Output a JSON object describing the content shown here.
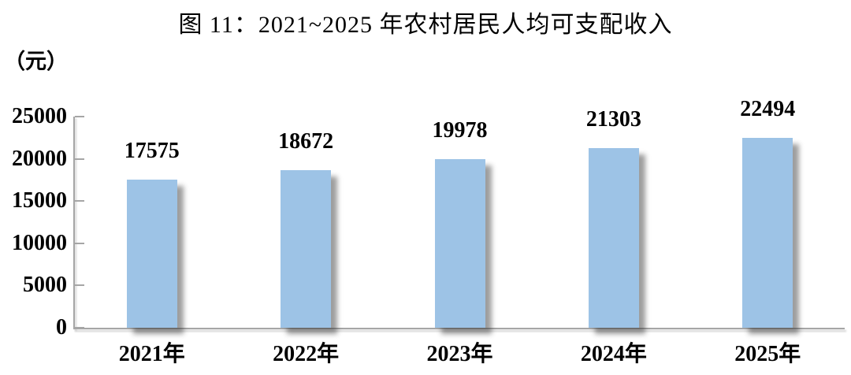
{
  "figure": {
    "title": "图 11：2021~2025 年农村居民人均可支配收入",
    "unit_label": "（元）"
  },
  "chart_data": {
    "type": "bar",
    "title": "图 11：2021~2025 年农村居民人均可支配收入",
    "ylabel": "（元）",
    "categories": [
      "2021年",
      "2022年",
      "2023年",
      "2024年",
      "2025年"
    ],
    "values": [
      17575,
      18672,
      19978,
      21303,
      22494
    ],
    "ylim": [
      0,
      25000
    ],
    "yticks": [
      0,
      5000,
      10000,
      15000,
      20000,
      25000
    ],
    "data_labels": true,
    "grid": false,
    "legend": "none",
    "bar_color": "#9DC3E6",
    "axis_color": "#A6A6A6",
    "text_color": "#000000"
  }
}
